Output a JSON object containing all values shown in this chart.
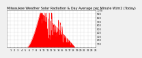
{
  "title": "Milwaukee Weather Solar Radiation & Day Average per Minute W/m2 (Today)",
  "background_color": "#f0f0f0",
  "plot_bg_color": "#ffffff",
  "fill_color": "#ff0000",
  "line_color": "#ff0000",
  "grid_color": "#aaaaaa",
  "title_fontsize": 3.5,
  "tick_fontsize": 2.5,
  "ylim": [
    0,
    1000
  ],
  "xlim": [
    0,
    1440
  ],
  "yticks": [
    100,
    200,
    300,
    400,
    500,
    600,
    700,
    800,
    900,
    1000
  ],
  "xtick_positions": [
    60,
    120,
    180,
    240,
    300,
    360,
    420,
    480,
    540,
    600,
    660,
    720,
    780,
    840,
    900,
    960,
    1020,
    1080,
    1140,
    1200,
    1260,
    1320,
    1380,
    1440
  ],
  "xtick_labels": [
    "1",
    "2",
    "3",
    "4",
    "5",
    "6",
    "7",
    "8",
    "9",
    "10",
    "11",
    "12",
    "13",
    "14",
    "15",
    "16",
    "17",
    "18",
    "19",
    "20",
    "21",
    "22",
    "23",
    "24"
  ],
  "peak_minute": 540,
  "sunrise_minute": 330,
  "sunset_minute": 1110,
  "peak_value": 920
}
